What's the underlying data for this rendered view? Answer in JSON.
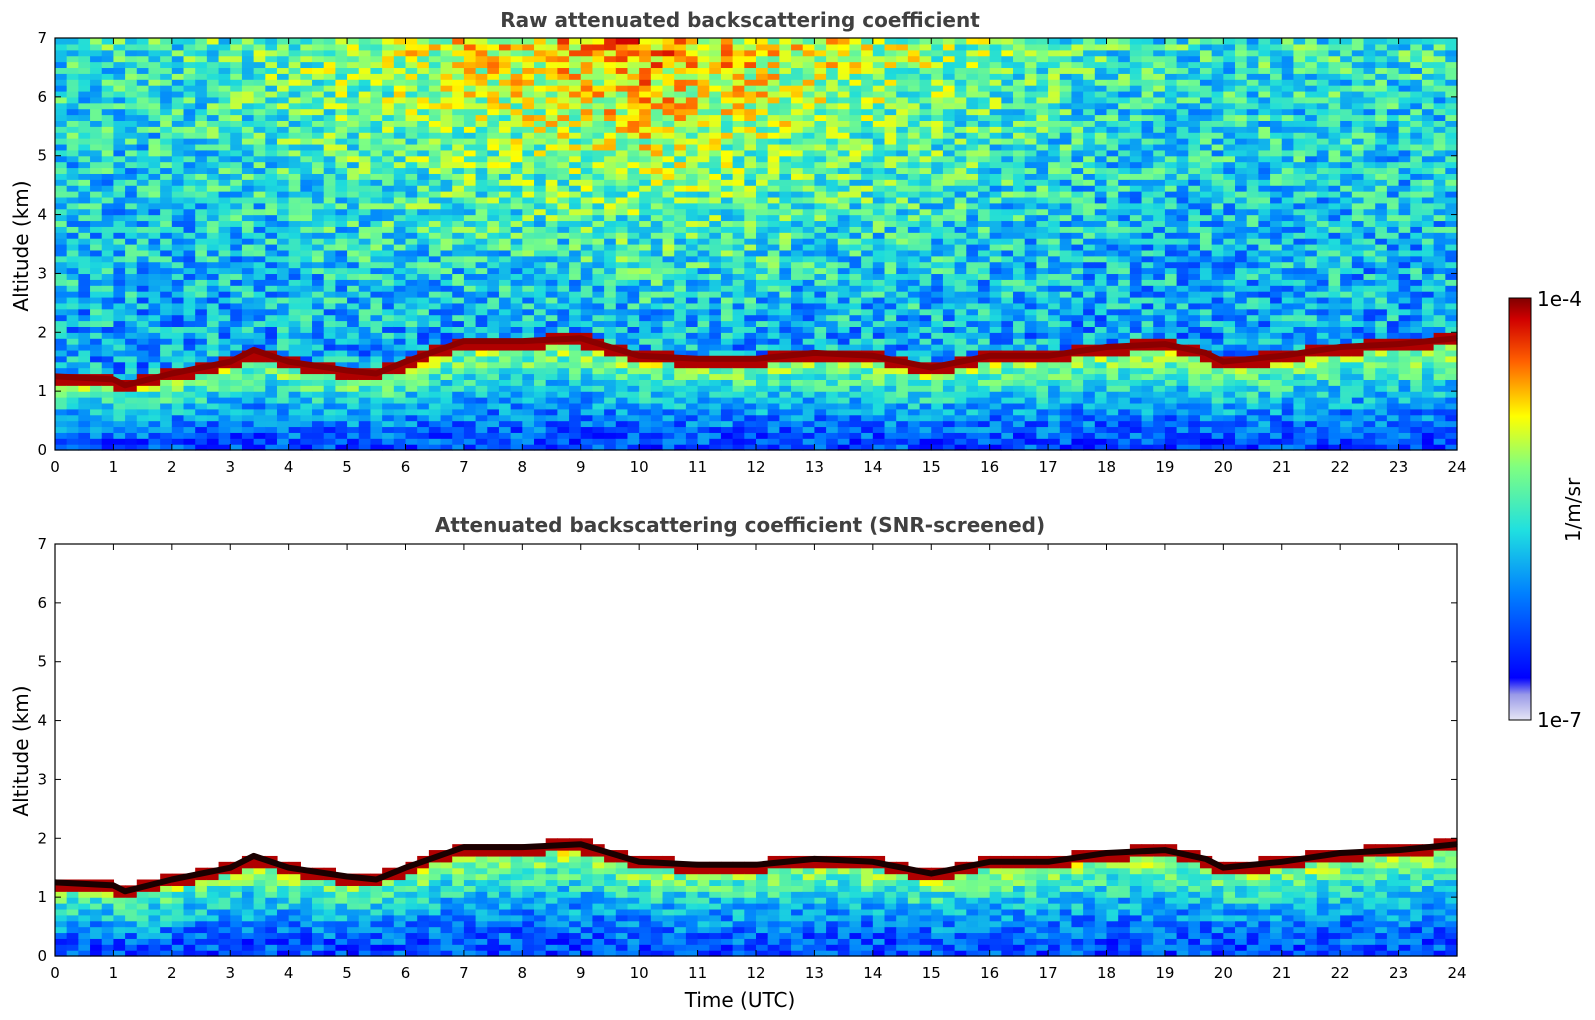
{
  "chart_data": [
    {
      "type": "heatmap",
      "title": "Raw attenuated backscattering coefficient",
      "xlabel": "",
      "ylabel": "Altitude (km)",
      "xlim": [
        0,
        24
      ],
      "ylim": [
        0,
        7
      ],
      "x_ticks": [
        "0",
        "1",
        "2",
        "3",
        "4",
        "5",
        "6",
        "7",
        "8",
        "9",
        "10",
        "11",
        "12",
        "13",
        "14",
        "15",
        "16",
        "17",
        "18",
        "19",
        "20",
        "21",
        "22",
        "23",
        "24"
      ],
      "y_ticks": [
        "0",
        "1",
        "2",
        "3",
        "4",
        "5",
        "6",
        "7"
      ],
      "boundary_layer_top_km": {
        "time_utc": [
          0,
          1,
          1.2,
          2,
          3,
          3.4,
          4,
          5,
          5.5,
          6,
          7,
          8,
          9,
          10,
          11,
          12,
          13,
          14,
          15,
          16,
          17,
          18,
          19,
          19.7,
          20,
          21,
          22,
          23,
          24
        ],
        "altitude": [
          1.25,
          1.2,
          1.1,
          1.3,
          1.5,
          1.7,
          1.5,
          1.35,
          1.3,
          1.5,
          1.85,
          1.85,
          1.9,
          1.6,
          1.55,
          1.55,
          1.65,
          1.6,
          1.4,
          1.6,
          1.6,
          1.75,
          1.8,
          1.65,
          1.5,
          1.6,
          1.75,
          1.8,
          1.9
        ]
      },
      "screened": false
    },
    {
      "type": "heatmap",
      "title": "Attenuated backscattering coefficient (SNR-screened)",
      "xlabel": "Time (UTC)",
      "ylabel": "Altitude (km)",
      "xlim": [
        0,
        24
      ],
      "ylim": [
        0,
        7
      ],
      "x_ticks": [
        "0",
        "1",
        "2",
        "3",
        "4",
        "5",
        "6",
        "7",
        "8",
        "9",
        "10",
        "11",
        "12",
        "13",
        "14",
        "15",
        "16",
        "17",
        "18",
        "19",
        "20",
        "21",
        "22",
        "23",
        "24"
      ],
      "y_ticks": [
        "0",
        "1",
        "2",
        "3",
        "4",
        "5",
        "6",
        "7"
      ],
      "boundary_layer_top_km": {
        "time_utc": [
          0,
          1,
          1.2,
          2,
          3,
          3.4,
          4,
          5,
          5.5,
          6,
          7,
          8,
          9,
          10,
          11,
          12,
          13,
          14,
          15,
          16,
          17,
          18,
          19,
          19.7,
          20,
          21,
          22,
          23,
          24
        ],
        "altitude": [
          1.25,
          1.2,
          1.1,
          1.3,
          1.5,
          1.7,
          1.5,
          1.35,
          1.3,
          1.5,
          1.85,
          1.85,
          1.9,
          1.6,
          1.55,
          1.55,
          1.65,
          1.6,
          1.4,
          1.6,
          1.6,
          1.75,
          1.8,
          1.65,
          1.5,
          1.6,
          1.75,
          1.8,
          1.9
        ]
      },
      "screened": true
    }
  ],
  "colorbar": {
    "label": "1/m/sr",
    "max_label": "1e-4",
    "min_label": "1e-7",
    "scale": "log",
    "colormap": "jet"
  }
}
